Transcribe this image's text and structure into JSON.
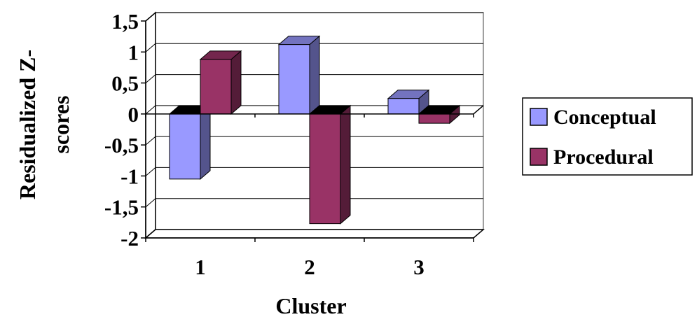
{
  "chart_data": {
    "type": "bar",
    "style": "3d-clustered-column",
    "xlabel": "Cluster",
    "ylabel_lines": [
      "Residualized Z-",
      "scores"
    ],
    "categories": [
      "1",
      "2",
      "3"
    ],
    "series": [
      {
        "name": "Conceptual",
        "values": [
          -1.05,
          1.12,
          0.25
        ],
        "color": "#9999ff"
      },
      {
        "name": "Procedural",
        "values": [
          0.88,
          -1.77,
          -0.15
        ],
        "color": "#993366"
      }
    ],
    "ylim": [
      -2,
      1.5
    ],
    "yticks": [
      -2,
      -1.5,
      -1,
      -0.5,
      0,
      0.5,
      1,
      1.5
    ],
    "ytick_labels": [
      "-2",
      "-1,5",
      "-1",
      "-0,5",
      "0",
      "0,5",
      "1",
      "1,5"
    ],
    "grid": true,
    "legend_position": "right"
  }
}
